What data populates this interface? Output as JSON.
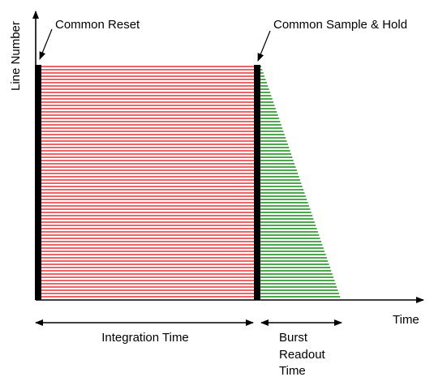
{
  "diagram": {
    "axis_y_label": "Line Number",
    "axis_x_label": "Time",
    "reset_label": "Common Reset",
    "sample_hold_label": "Common Sample & Hold",
    "integration_label": "Integration Time",
    "readout_label_line1": "Burst",
    "readout_label_line2": "Readout",
    "readout_label_line3": "Time"
  },
  "colors": {
    "integration_lines": "#e8303a",
    "readout_lines": "#138a13",
    "bars": "#000000",
    "axis": "#000000"
  }
}
